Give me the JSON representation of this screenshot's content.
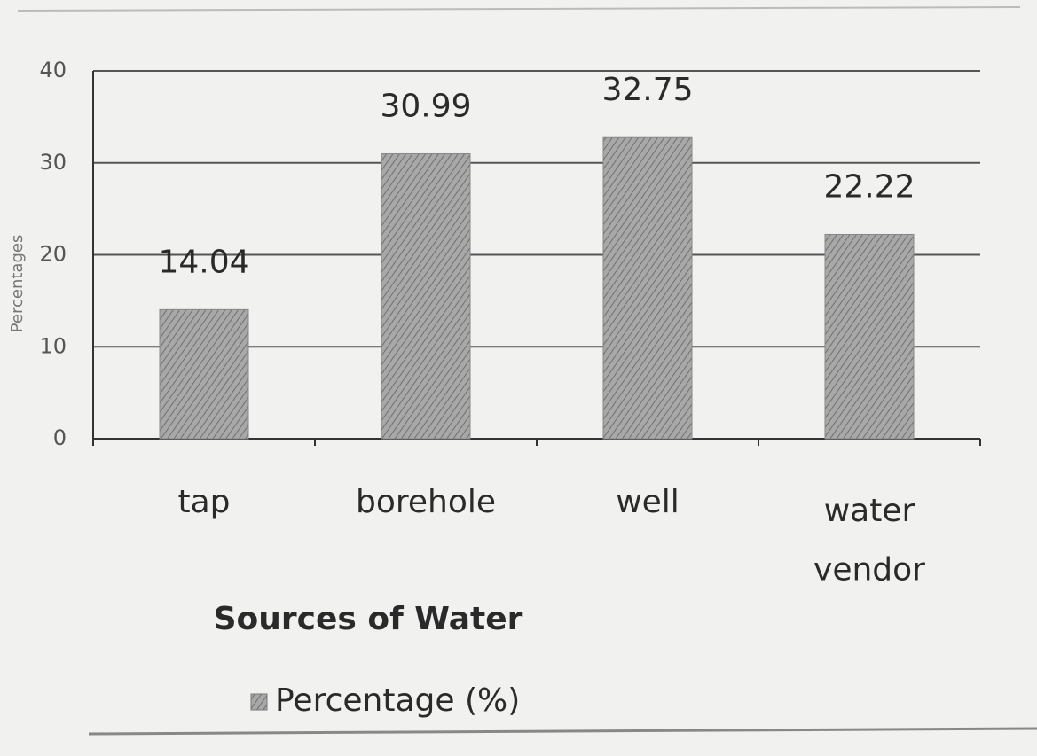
{
  "chart_data": {
    "type": "bar",
    "x_label": "Sources of Water",
    "y_label": "Percentages",
    "categories": [
      "tap",
      "borehole",
      "well",
      "water vendor"
    ],
    "series": [
      {
        "name": "Percentage (%)",
        "color": "#a8a8a8",
        "values": [
          14.04,
          30.99,
          32.75,
          22.22
        ]
      }
    ],
    "ylim": [
      0,
      40
    ],
    "yticks": [
      0,
      10,
      20,
      30,
      40
    ],
    "grid": true,
    "data_labels": true,
    "legend": "bottom"
  }
}
